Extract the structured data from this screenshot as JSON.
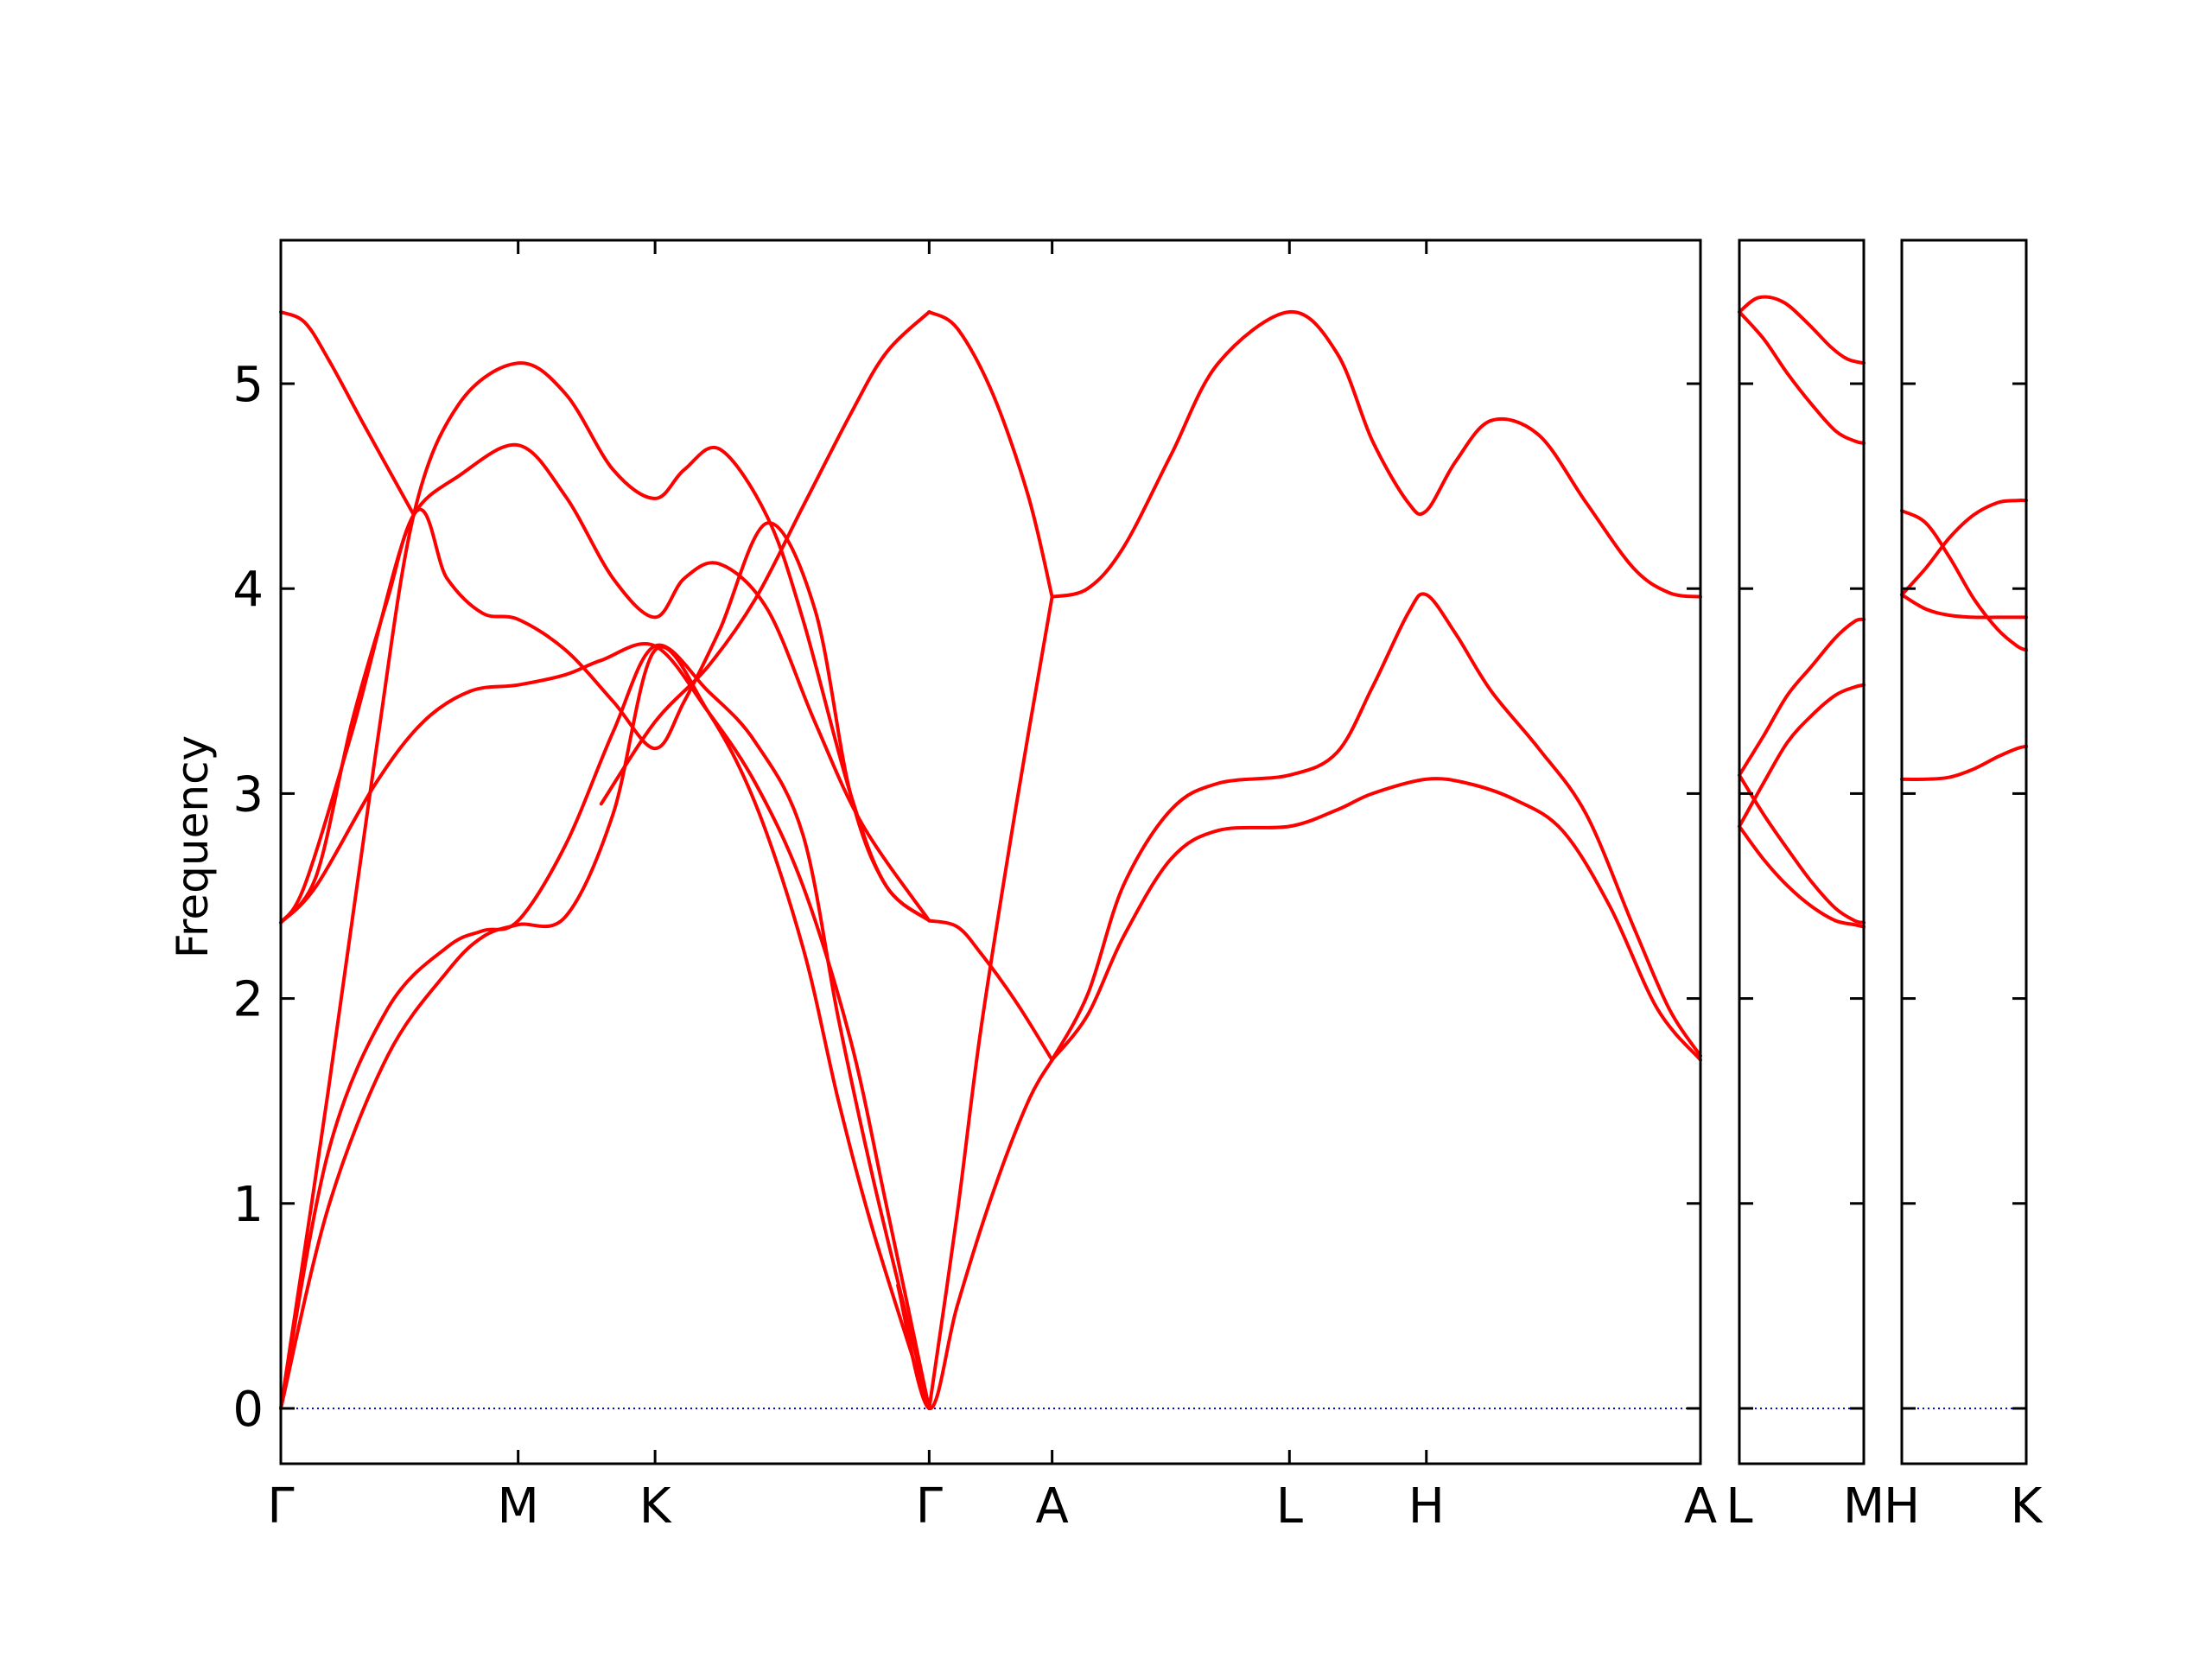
{
  "chart_data": {
    "type": "line",
    "ylabel": "Frequency",
    "ylim": [
      -0.27,
      5.7
    ],
    "yticks": [
      0,
      1,
      2,
      3,
      4,
      5
    ],
    "line_color": "#ff0000",
    "zero_line_color": "#0000ff",
    "x_ticks": [
      {
        "label": "Γ",
        "x": 0.0
      },
      {
        "label": "M",
        "x": 1.0
      },
      {
        "label": "K",
        "x": 1.577
      },
      {
        "label": "Γ",
        "x": 2.732
      },
      {
        "label": "A",
        "x": 3.25
      },
      {
        "label": "L",
        "x": 4.25
      },
      {
        "label": "H",
        "x": 4.827
      },
      {
        "label": "A",
        "x": 5.982
      },
      {
        "label": "L",
        "x": 6.0
      },
      {
        "label": "M",
        "x": 6.518
      },
      {
        "label": "H",
        "x": 6.6
      },
      {
        "label": "K",
        "x": 7.118
      }
    ],
    "panels": [
      {
        "xrange": [
          0.0,
          5.982
        ],
        "series": [
          {
            "x": [
              0,
              0.2,
              0.45,
              0.7,
              0.85,
              1.0,
              1.2,
              1.4,
              1.577,
              1.8,
              2.0,
              2.2,
              2.35,
              2.5,
              2.732
            ],
            "y": [
              0,
              0.98,
              1.72,
              2.13,
              2.3,
              2.36,
              2.4,
              2.9,
              3.7,
              3.4,
              2.95,
              2.25,
              1.5,
              0.85,
              0
            ]
          },
          {
            "x": [
              0,
              0.2,
              0.45,
              0.7,
              0.85,
              1.0,
              1.2,
              1.4,
              1.577,
              1.8,
              2.0,
              2.2,
              2.35,
              2.5,
              2.732
            ],
            "y": [
              0,
              1.25,
              1.95,
              2.25,
              2.33,
              2.38,
              2.75,
              3.3,
              3.72,
              3.5,
              3.25,
              2.8,
              1.9,
              1.1,
              0
            ]
          },
          {
            "x": [
              0,
              0.15,
              0.4,
              0.6,
              0.8,
              1.0,
              1.2,
              1.35,
              1.577,
              1.8,
              2.0,
              2.2,
              2.4,
              2.55,
              2.732
            ],
            "y": [
              2.37,
              2.55,
              3.05,
              3.35,
              3.5,
              3.53,
              3.58,
              3.65,
              3.72,
              3.4,
              3.05,
              2.55,
              1.8,
              1.0,
              0
            ]
          },
          {
            "x": [
              0,
              0.1,
              0.3,
              0.56,
              0.7,
              0.85,
              1.0,
              1.2,
              1.4,
              1.577,
              1.7,
              1.85,
              2.05,
              2.25,
              2.4,
              2.55,
              2.732
            ],
            "y": [
              2.37,
              2.55,
              3.3,
              4.36,
              4.05,
              3.88,
              3.85,
              3.7,
              3.45,
              3.22,
              3.45,
              3.8,
              4.32,
              3.9,
              3.0,
              2.55,
              2.38
            ]
          },
          {
            "x": [
              0,
              0.2,
              0.4,
              0.56,
              0.75,
              1.0,
              1.2,
              1.4,
              1.577,
              1.7,
              1.85,
              2.05,
              2.2,
              2.4,
              2.55,
              2.732
            ],
            "y": [
              0,
              1.55,
              3.2,
              4.36,
              4.9,
              5.1,
              4.95,
              4.58,
              4.44,
              4.58,
              4.68,
              4.35,
              3.85,
              3.0,
              2.55,
              2.38
            ]
          },
          {
            "x": [
              0,
              0.15,
              0.3,
              0.45,
              0.56,
              0.75,
              1.0,
              1.2,
              1.4,
              1.577,
              1.7,
              1.85,
              2.05,
              2.25,
              2.45,
              2.732
            ],
            "y": [
              2.37,
              2.6,
              3.35,
              3.95,
              4.36,
              4.55,
              4.7,
              4.45,
              4.05,
              3.86,
              4.05,
              4.12,
              3.9,
              3.35,
              2.85,
              2.38
            ]
          },
          {
            "x": [
              0,
              0.1,
              0.2,
              0.35,
              0.56
            ],
            "y": [
              5.35,
              5.3,
              5.12,
              4.8,
              4.36
            ]
          },
          {
            "x": [
              1.35,
              1.577,
              1.8,
              2.0,
              2.2,
              2.4,
              2.55,
              2.732
            ],
            "y": [
              2.95,
              3.35,
              3.62,
              3.95,
              4.4,
              4.85,
              5.15,
              5.35
            ]
          },
          {
            "x": [
              2.732,
              2.85,
              3.0,
              3.15,
              3.25
            ],
            "y": [
              5.35,
              5.27,
              4.95,
              4.45,
              3.96
            ]
          },
          {
            "x": [
              2.6,
              2.732,
              2.85,
              3.0,
              3.15,
              3.25
            ],
            "y": [
              0.6,
              0,
              0.5,
              1.05,
              1.5,
              1.7
            ]
          },
          {
            "x": [
              2.732,
              2.85,
              2.95,
              3.1,
              3.25
            ],
            "y": [
              0,
              0.95,
              1.85,
              2.95,
              3.96
            ]
          },
          {
            "x": [
              2.732,
              2.85,
              2.95,
              3.1,
              3.25
            ],
            "y": [
              2.38,
              2.35,
              2.22,
              1.98,
              1.7
            ]
          },
          {
            "x": [
              3.25,
              3.4,
              3.55,
              3.75,
              3.95,
              4.25,
              4.45,
              4.6,
              4.75,
              4.827,
              4.95,
              5.1,
              5.3,
              5.5,
              5.7,
              5.85,
              5.982
            ],
            "y": [
              3.96,
              4.0,
              4.2,
              4.65,
              5.1,
              5.35,
              5.15,
              4.72,
              4.42,
              4.38,
              4.62,
              4.82,
              4.75,
              4.42,
              4.1,
              3.98,
              3.96
            ]
          },
          {
            "x": [
              3.25,
              3.4,
              3.55,
              3.75,
              3.95,
              4.25,
              4.45,
              4.6,
              4.75,
              4.827,
              4.95,
              5.1,
              5.3,
              5.5,
              5.7,
              5.85,
              5.982
            ],
            "y": [
              1.7,
              2.02,
              2.55,
              2.92,
              3.05,
              3.09,
              3.2,
              3.52,
              3.88,
              3.97,
              3.78,
              3.5,
              3.22,
              2.9,
              2.35,
              1.95,
              1.72
            ]
          },
          {
            "x": [
              3.25,
              3.4,
              3.55,
              3.75,
              3.95,
              4.25,
              4.45,
              4.6,
              4.827,
              5.0,
              5.2,
              5.4,
              5.6,
              5.8,
              5.982
            ],
            "y": [
              1.7,
              1.92,
              2.3,
              2.68,
              2.82,
              2.84,
              2.92,
              3.0,
              3.07,
              3.05,
              2.97,
              2.82,
              2.45,
              1.95,
              1.7
            ]
          }
        ]
      },
      {
        "xrange": [
          6.0,
          6.518
        ],
        "series": [
          {
            "x": [
              6.0,
              6.08,
              6.18,
              6.28,
              6.38,
              6.45,
              6.518
            ],
            "y": [
              5.35,
              5.42,
              5.4,
              5.3,
              5.18,
              5.12,
              5.1
            ]
          },
          {
            "x": [
              6.0,
              6.1,
              6.2,
              6.3,
              6.4,
              6.48,
              6.518
            ],
            "y": [
              5.35,
              5.22,
              5.05,
              4.9,
              4.77,
              4.72,
              4.71
            ]
          },
          {
            "x": [
              6.0,
              6.1,
              6.2,
              6.3,
              6.4,
              6.48,
              6.518
            ],
            "y": [
              3.09,
              3.28,
              3.48,
              3.62,
              3.76,
              3.84,
              3.85
            ]
          },
          {
            "x": [
              6.0,
              6.1,
              6.2,
              6.3,
              6.4,
              6.48,
              6.518
            ],
            "y": [
              2.84,
              3.05,
              3.25,
              3.38,
              3.48,
              3.52,
              3.53
            ]
          },
          {
            "x": [
              6.0,
              6.1,
              6.2,
              6.3,
              6.4,
              6.48,
              6.518
            ],
            "y": [
              3.09,
              2.9,
              2.73,
              2.57,
              2.44,
              2.38,
              2.37
            ]
          },
          {
            "x": [
              6.0,
              6.1,
              6.2,
              6.3,
              6.4,
              6.48,
              6.518
            ],
            "y": [
              2.84,
              2.68,
              2.55,
              2.45,
              2.38,
              2.36,
              2.35
            ]
          }
        ]
      },
      {
        "xrange": [
          6.6,
          7.118
        ],
        "series": [
          {
            "x": [
              6.6,
              6.7,
              6.8,
              6.9,
              7.0,
              7.08,
              7.118
            ],
            "y": [
              3.07,
              3.07,
              3.08,
              3.12,
              3.18,
              3.22,
              3.23
            ]
          },
          {
            "x": [
              6.6,
              6.7,
              6.8,
              6.9,
              7.0,
              7.08,
              7.118
            ],
            "y": [
              3.97,
              3.9,
              3.87,
              3.86,
              3.86,
              3.86,
              3.86
            ]
          },
          {
            "x": [
              6.6,
              6.7,
              6.8,
              6.9,
              7.0,
              7.08,
              7.118
            ],
            "y": [
              4.38,
              4.32,
              4.15,
              3.95,
              3.8,
              3.72,
              3.7
            ]
          },
          {
            "x": [
              6.6,
              6.7,
              6.8,
              6.9,
              7.0,
              7.08,
              7.118
            ],
            "y": [
              3.97,
              4.1,
              4.25,
              4.36,
              4.42,
              4.43,
              4.43
            ]
          }
        ]
      }
    ]
  }
}
